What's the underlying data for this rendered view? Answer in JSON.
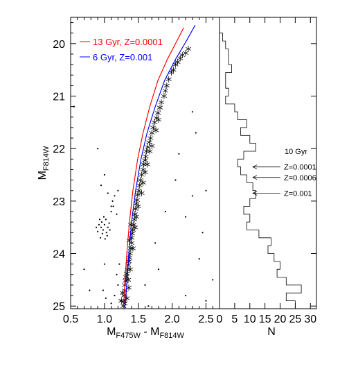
{
  "chart_data": [
    {
      "type": "scatter",
      "xlabel": "M",
      "xlabel_sub": "F475W",
      "xlabel_sep": " - M",
      "xlabel_sub2": "F814W",
      "ylabel": "M",
      "ylabel_sub": "F814W",
      "xlim": [
        0.5,
        2.7
      ],
      "ylim": [
        25.05,
        19.5
      ],
      "y_inverted": true,
      "xticks": [
        0.5,
        1.0,
        1.5,
        2.0,
        2.5
      ],
      "xtick_labels": [
        "0.5",
        "1.0",
        "1.5",
        "2.0",
        "2.5"
      ],
      "yticks": [
        20,
        21,
        22,
        23,
        24,
        25
      ],
      "ytick_labels": [
        "20",
        "21",
        "22",
        "23",
        "24",
        "25"
      ],
      "grid": false,
      "legend_position": "top-left",
      "series": [
        {
          "name": "13 Gyr, Z=0.0001",
          "kind": "isochrone",
          "color": "#ff0000",
          "points": [
            [
              1.28,
              25.05
            ],
            [
              1.3,
              24.6
            ],
            [
              1.33,
              24.0
            ],
            [
              1.37,
              23.4
            ],
            [
              1.42,
              22.8
            ],
            [
              1.49,
              22.2
            ],
            [
              1.57,
              21.7
            ],
            [
              1.67,
              21.2
            ],
            [
              1.79,
              20.7
            ],
            [
              1.93,
              20.3
            ],
            [
              2.07,
              19.95
            ],
            [
              2.17,
              19.7
            ]
          ]
        },
        {
          "name": "6 Gyr, Z=0.001",
          "kind": "isochrone",
          "color": "#0000ff",
          "points": [
            [
              1.3,
              25.05
            ],
            [
              1.33,
              24.6
            ],
            [
              1.36,
              24.0
            ],
            [
              1.4,
              23.4
            ],
            [
              1.46,
              22.8
            ],
            [
              1.54,
              22.2
            ],
            [
              1.63,
              21.7
            ],
            [
              1.75,
              21.2
            ],
            [
              1.89,
              20.7
            ],
            [
              2.05,
              20.3
            ],
            [
              2.21,
              19.95
            ],
            [
              2.34,
              19.65
            ]
          ]
        },
        {
          "name": "stars",
          "kind": "asterisk-markers",
          "color": "#000000",
          "points": [
            [
              2.24,
              20.1
            ],
            [
              2.2,
              20.18
            ],
            [
              2.12,
              20.28
            ],
            [
              2.15,
              20.22
            ],
            [
              2.05,
              20.4
            ],
            [
              2.08,
              20.35
            ],
            [
              1.99,
              20.55
            ],
            [
              2.02,
              20.5
            ],
            [
              1.95,
              20.68
            ],
            [
              1.92,
              20.8
            ],
            [
              1.9,
              20.9
            ],
            [
              1.88,
              21.0
            ],
            [
              1.84,
              21.12
            ],
            [
              1.82,
              21.22
            ],
            [
              1.79,
              21.32
            ],
            [
              1.77,
              21.42
            ],
            [
              1.74,
              21.5
            ],
            [
              1.72,
              21.6
            ],
            [
              1.7,
              21.7
            ],
            [
              1.68,
              21.8
            ],
            [
              1.66,
              21.88
            ],
            [
              1.64,
              21.97
            ],
            [
              1.62,
              22.05
            ],
            [
              1.61,
              22.15
            ],
            [
              1.6,
              22.22
            ],
            [
              1.58,
              22.3
            ],
            [
              1.57,
              22.4
            ],
            [
              1.55,
              22.5
            ],
            [
              1.53,
              22.6
            ],
            [
              1.52,
              22.7
            ],
            [
              1.51,
              22.8
            ],
            [
              1.49,
              22.88
            ],
            [
              1.48,
              22.98
            ],
            [
              1.47,
              23.05
            ],
            [
              1.46,
              23.15
            ],
            [
              1.45,
              23.25
            ],
            [
              1.44,
              23.35
            ],
            [
              1.43,
              23.45
            ],
            [
              1.42,
              23.55
            ],
            [
              1.41,
              23.62
            ],
            [
              1.4,
              23.7
            ],
            [
              1.4,
              23.8
            ],
            [
              1.39,
              23.9
            ],
            [
              1.38,
              24.0
            ],
            [
              1.37,
              24.08
            ],
            [
              1.36,
              24.15
            ],
            [
              1.35,
              24.22
            ],
            [
              1.34,
              24.3
            ],
            [
              1.33,
              24.38
            ],
            [
              1.32,
              24.45
            ],
            [
              1.31,
              24.52
            ],
            [
              1.3,
              24.6
            ],
            [
              1.3,
              24.7
            ],
            [
              1.29,
              24.8
            ],
            [
              1.29,
              24.9
            ],
            [
              1.28,
              25.0
            ],
            [
              1.35,
              24.5
            ],
            [
              1.38,
              24.3
            ],
            [
              1.27,
              24.75
            ],
            [
              1.33,
              24.85
            ],
            [
              1.3,
              24.95
            ],
            [
              1.25,
              24.9
            ],
            [
              1.36,
              24.65
            ],
            [
              1.42,
              23.9
            ],
            [
              1.37,
              23.75
            ],
            [
              1.45,
              23.5
            ],
            [
              1.39,
              23.45
            ],
            [
              1.47,
              23.3
            ],
            [
              1.5,
              23.1
            ],
            [
              1.55,
              22.85
            ],
            [
              1.57,
              22.65
            ],
            [
              1.6,
              22.45
            ],
            [
              1.63,
              22.3
            ],
            [
              1.67,
              22.05
            ],
            [
              1.7,
              21.95
            ],
            [
              1.76,
              21.65
            ],
            [
              1.8,
              21.45
            ]
          ]
        },
        {
          "name": "field",
          "kind": "dots",
          "color": "#000000",
          "points": [
            [
              0.92,
              23.45
            ],
            [
              0.95,
              23.5
            ],
            [
              0.98,
              23.55
            ],
            [
              1.0,
              23.45
            ],
            [
              1.03,
              23.6
            ],
            [
              0.97,
              23.62
            ],
            [
              1.02,
              23.35
            ],
            [
              1.05,
              23.5
            ],
            [
              0.9,
              23.58
            ],
            [
              0.94,
              23.7
            ],
            [
              1.07,
              23.42
            ],
            [
              0.99,
              23.3
            ],
            [
              1.01,
              23.72
            ],
            [
              0.88,
              23.5
            ],
            [
              1.04,
              23.66
            ],
            [
              0.96,
              23.4
            ],
            [
              1.08,
              23.55
            ],
            [
              0.93,
              23.35
            ],
            [
              1.1,
              23.2
            ],
            [
              1.12,
              23.0
            ],
            [
              1.15,
              22.9
            ],
            [
              1.13,
              23.1
            ],
            [
              1.18,
              23.25
            ],
            [
              1.2,
              22.8
            ],
            [
              1.22,
              24.2
            ],
            [
              1.18,
              24.4
            ],
            [
              1.2,
              24.6
            ],
            [
              1.15,
              24.8
            ],
            [
              1.24,
              24.9
            ],
            [
              1.1,
              24.95
            ],
            [
              1.02,
              24.85
            ],
            [
              0.98,
              24.7
            ],
            [
              0.7,
              24.3
            ],
            [
              0.55,
              21.2
            ],
            [
              0.9,
              22.0
            ],
            [
              1.0,
              22.5
            ],
            [
              0.95,
              22.7
            ],
            [
              1.05,
              22.85
            ],
            [
              1.1,
              23.1
            ],
            [
              1.0,
              24.2
            ],
            [
              0.78,
              24.7
            ],
            [
              1.9,
              23.2
            ],
            [
              2.2,
              23.3
            ],
            [
              2.3,
              22.9
            ],
            [
              2.1,
              22.1
            ],
            [
              2.5,
              22.8
            ],
            [
              2.4,
              24.1
            ],
            [
              1.8,
              24.3
            ],
            [
              2.2,
              24.8
            ],
            [
              2.5,
              24.9
            ],
            [
              1.6,
              24.6
            ],
            [
              2.6,
              24.5
            ],
            [
              2.05,
              22.6
            ],
            [
              2.3,
              21.3
            ],
            [
              2.45,
              23.6
            ],
            [
              1.75,
              23.8
            ],
            [
              1.65,
              25.0
            ],
            [
              2.35,
              21.7
            ]
          ]
        }
      ]
    },
    {
      "type": "line",
      "style": "histogram-step",
      "xlabel": "N",
      "xlim": [
        0,
        32
      ],
      "ylim": [
        25.05,
        19.5
      ],
      "xticks": [
        0,
        5,
        10,
        15,
        20,
        25,
        30
      ],
      "xtick_labels": [
        "0",
        "5",
        "10",
        "15",
        "20",
        "25",
        "30"
      ],
      "grid": false,
      "bin_edges": [
        19.5,
        19.65,
        19.8,
        19.95,
        20.1,
        20.25,
        20.4,
        20.55,
        20.7,
        20.85,
        21.0,
        21.15,
        21.3,
        21.45,
        21.6,
        21.75,
        21.9,
        22.05,
        22.2,
        22.35,
        22.5,
        22.65,
        22.8,
        22.95,
        23.1,
        23.25,
        23.4,
        23.55,
        23.7,
        23.85,
        24.0,
        24.15,
        24.3,
        24.45,
        24.6,
        24.75,
        24.9,
        25.05
      ],
      "counts": [
        0,
        0,
        1,
        2,
        3,
        3,
        4,
        2,
        2,
        3,
        2,
        5,
        6,
        9,
        7,
        10,
        12,
        8,
        6,
        7,
        9,
        11,
        12,
        10,
        8,
        10,
        9,
        13,
        17,
        16,
        18,
        20,
        19,
        22,
        27,
        22,
        25
      ],
      "annotation": {
        "title": "10 Gyr",
        "labels": [
          "Z=0.0001",
          "Z=0.0006",
          "Z=0.001"
        ],
        "arrow_y": [
          22.35,
          22.55,
          22.85
        ],
        "arrow_tip_n": [
          11,
          11,
          11
        ]
      }
    }
  ]
}
